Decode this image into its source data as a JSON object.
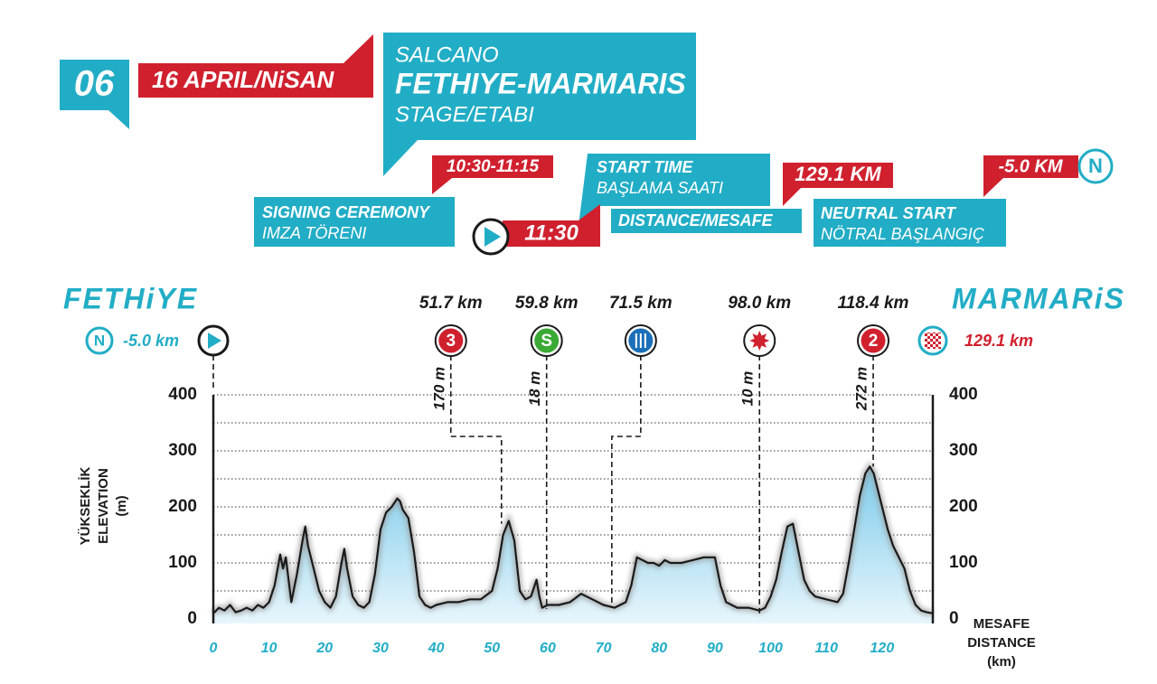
{
  "header": {
    "stage_number": "06",
    "date": "16 APRIL/NiSAN",
    "sponsor": "SALCANO",
    "route": "FETHIYE-MARMARIS",
    "stage": "STAGE/ETABI",
    "signing_time": "10:30-11:15",
    "signing_en": "SIGNING CEREMONY",
    "signing_tr": "IMZA TÖRENI",
    "start_time": "11:30",
    "start_en": "START TIME",
    "start_tr": "BAŞLAMA SAATI",
    "distance": "129.1 KM",
    "distance_label": "DISTANCE/MESAFE",
    "neutral": "-5.0 KM",
    "neutral_icon": "N",
    "neutral_en": "NEUTRAL START",
    "neutral_tr": "NÖTRAL BAŞLANGIÇ"
  },
  "chart_data": {
    "type": "area",
    "start_city": "FETHiYE",
    "finish_city": "MARMARiS",
    "neutral_icon": "N",
    "neutral_label": "-5.0 km",
    "finish_label": "129.1 km",
    "y_label": [
      "YÜKSEKLİK",
      "ELEVATION",
      "(m)"
    ],
    "x_label": [
      "MESAFE",
      "DISTANCE",
      "(km)"
    ],
    "color": "#1a1a1a",
    "fill_color": "#9fd8ef",
    "grid": true,
    "xlim": [
      0,
      129.1
    ],
    "ylim": [
      0,
      400
    ],
    "xticks": [
      0,
      10,
      20,
      30,
      40,
      50,
      60,
      70,
      80,
      90,
      100,
      110,
      120
    ],
    "yticks": [
      0,
      100,
      200,
      300,
      400
    ],
    "yticks_minor": [
      50,
      150,
      250,
      350
    ],
    "x": [
      0,
      1,
      2,
      3,
      4,
      5,
      6,
      7,
      8,
      9,
      10,
      11,
      12,
      12.5,
      13,
      14,
      15,
      16,
      16.5,
      17,
      18,
      19,
      20,
      21,
      22,
      23,
      23.5,
      24,
      25,
      26,
      27,
      28,
      29,
      30,
      31,
      32,
      33,
      33.5,
      34,
      35,
      36,
      37,
      38,
      39,
      40,
      42,
      44,
      46,
      48,
      50,
      51,
      52,
      53,
      54,
      55,
      56,
      57,
      58,
      58.5,
      59,
      60,
      62,
      64,
      66,
      68,
      70,
      72,
      74,
      75,
      76,
      77,
      78,
      79,
      80,
      81,
      82,
      84,
      86,
      88,
      90,
      91,
      92,
      94,
      96,
      98,
      99,
      100,
      101,
      102,
      103,
      104,
      105,
      106,
      107,
      108,
      110,
      112,
      113,
      114,
      115,
      116,
      117,
      117.8,
      118.5,
      119,
      120,
      121,
      122,
      123,
      124,
      125,
      126,
      127,
      128,
      129.1
    ],
    "values": [
      10,
      20,
      15,
      25,
      12,
      15,
      20,
      15,
      25,
      20,
      30,
      60,
      115,
      90,
      110,
      30,
      80,
      140,
      165,
      130,
      90,
      50,
      30,
      20,
      40,
      100,
      125,
      90,
      40,
      25,
      20,
      30,
      80,
      160,
      190,
      200,
      215,
      210,
      195,
      180,
      120,
      40,
      25,
      20,
      25,
      30,
      30,
      35,
      35,
      50,
      90,
      150,
      175,
      140,
      50,
      35,
      40,
      70,
      40,
      20,
      25,
      25,
      30,
      45,
      35,
      25,
      20,
      30,
      60,
      110,
      105,
      100,
      100,
      95,
      105,
      100,
      100,
      105,
      110,
      110,
      60,
      30,
      20,
      20,
      15,
      20,
      40,
      70,
      120,
      165,
      170,
      120,
      70,
      50,
      40,
      35,
      30,
      45,
      100,
      160,
      220,
      260,
      272,
      260,
      240,
      200,
      160,
      130,
      110,
      90,
      50,
      25,
      15,
      12,
      10
    ],
    "markers": [
      {
        "x": 51.7,
        "label": "51.7 km",
        "symbol": "3",
        "color": "#d0202e",
        "height": 170,
        "height_label": "170 m"
      },
      {
        "x": 59.8,
        "label": "59.8 km",
        "symbol": "S",
        "color": "#3aaa35",
        "height": 18,
        "height_label": "18 m"
      },
      {
        "x": 71.5,
        "label": "71.5 km",
        "color": "#1b6fb8"
      },
      {
        "x": 98.0,
        "label": "98.0 km",
        "color": "#d0202e",
        "height": 10,
        "height_label": "10 m"
      },
      {
        "x": 118.4,
        "label": "118.4 km",
        "symbol": "2",
        "color": "#d0202e",
        "height": 272,
        "height_label": "272 m"
      }
    ]
  }
}
